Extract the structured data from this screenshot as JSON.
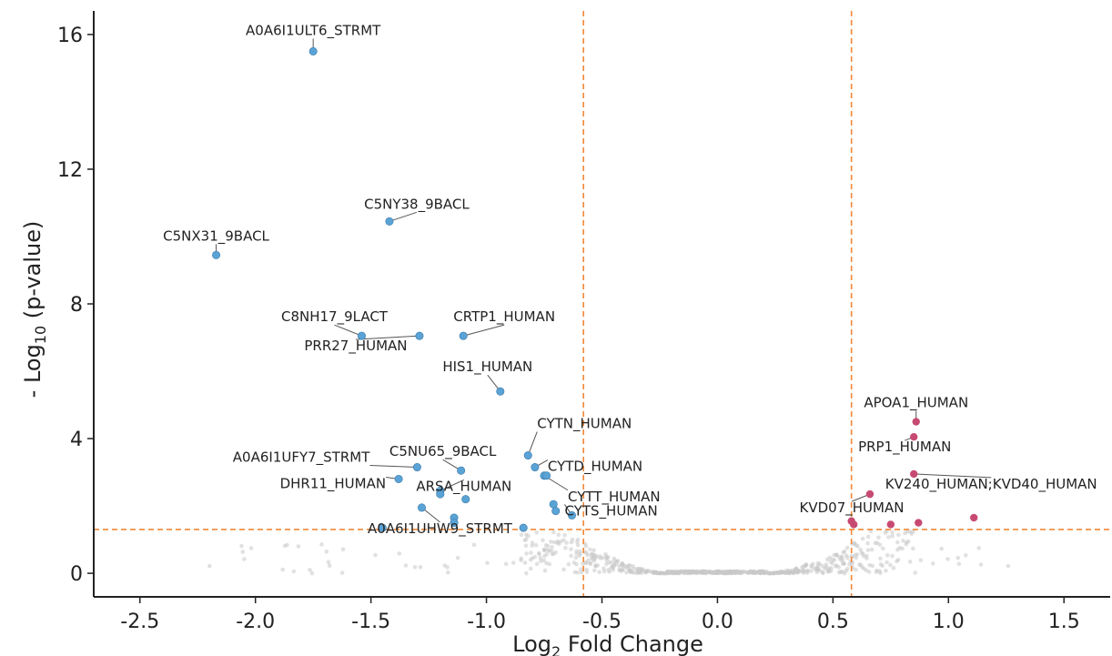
{
  "chart_data": {
    "type": "scatter",
    "title": "",
    "xlabel_main": "Log",
    "xlabel_sub": "2",
    "xlabel_rest": " Fold Change",
    "ylabel_pre": "- Log",
    "ylabel_sub": "10",
    "ylabel_rest": " (p-value)",
    "xlim": [
      -2.7,
      1.7
    ],
    "ylim": [
      -0.7,
      16.7
    ],
    "x_ticks": [
      -2.5,
      -2.0,
      -1.5,
      -1.0,
      -0.5,
      0.0,
      0.5,
      1.0,
      1.5
    ],
    "x_tick_labels": [
      "-2.5",
      "-2.0",
      "-1.5",
      "-1.0",
      "-0.5",
      "0.0",
      "0.5",
      "1.0",
      "1.5"
    ],
    "y_ticks": [
      0,
      4,
      8,
      12,
      16
    ],
    "y_tick_labels": [
      "0",
      "4",
      "8",
      "12",
      "16"
    ],
    "thresholds": {
      "fc_low": -0.58,
      "fc_high": 0.58,
      "p": 1.3
    },
    "colors": {
      "down": "#5aa3d6",
      "up": "#c74a72",
      "ns": "#c8c8c8",
      "threshold": "#f0883a",
      "text": "#222222"
    },
    "grid": false,
    "legend": "none",
    "points_down": [
      {
        "x": -1.75,
        "y": 15.5,
        "label": "A0A6I1ULT6_STRMT"
      },
      {
        "x": -1.42,
        "y": 10.45,
        "label": "C5NY38_9BACL"
      },
      {
        "x": -2.17,
        "y": 9.45,
        "label": "C5NX31_9BACL"
      },
      {
        "x": -1.54,
        "y": 7.05,
        "label": "C8NH17_9LACT"
      },
      {
        "x": -1.29,
        "y": 7.05,
        "label": "PRR27_HUMAN"
      },
      {
        "x": -1.1,
        "y": 7.05,
        "label": "CRTP1_HUMAN"
      },
      {
        "x": -0.94,
        "y": 5.4,
        "label": "HIS1_HUMAN"
      },
      {
        "x": -0.82,
        "y": 3.5,
        "label": "CYTN_HUMAN"
      },
      {
        "x": -0.79,
        "y": 3.15,
        "label": "CYTD_HUMAN"
      },
      {
        "x": -1.3,
        "y": 3.15,
        "label": "A0A6I1UFY7_STRMT"
      },
      {
        "x": -1.11,
        "y": 3.05,
        "label": "C5NU65_9BACL"
      },
      {
        "x": -0.75,
        "y": 2.9,
        "label": "CYTT_HUMAN"
      },
      {
        "x": -1.38,
        "y": 2.8,
        "label": "DHR11_HUMAN"
      },
      {
        "x": -1.2,
        "y": 2.45,
        "label": "ARSA_HUMAN"
      },
      {
        "x": -1.28,
        "y": 1.95,
        "label": "A0A6I1UHW9_STRMT"
      },
      {
        "x": -0.63,
        "y": 1.72,
        "label": "CYTS_HUMAN"
      },
      {
        "x": -0.74,
        "y": 2.9,
        "label": ""
      },
      {
        "x": -1.2,
        "y": 2.35,
        "label": ""
      },
      {
        "x": -1.09,
        "y": 2.2,
        "label": ""
      },
      {
        "x": -0.71,
        "y": 2.05,
        "label": ""
      },
      {
        "x": -0.7,
        "y": 1.85,
        "label": ""
      },
      {
        "x": -1.14,
        "y": 1.65,
        "label": ""
      },
      {
        "x": -1.14,
        "y": 1.5,
        "label": ""
      },
      {
        "x": -1.45,
        "y": 1.35,
        "label": ""
      },
      {
        "x": -0.84,
        "y": 1.35,
        "label": ""
      }
    ],
    "points_up": [
      {
        "x": 0.86,
        "y": 4.5,
        "label": "APOA1_HUMAN"
      },
      {
        "x": 0.85,
        "y": 4.05,
        "label": "PRP1_HUMAN"
      },
      {
        "x": 0.85,
        "y": 2.95,
        "label": "KV240_HUMAN;KVD40_HUMAN"
      },
      {
        "x": 0.66,
        "y": 2.35,
        "label": "KVD07_HUMAN"
      },
      {
        "x": 0.58,
        "y": 1.55,
        "label": ""
      },
      {
        "x": 0.59,
        "y": 1.45,
        "label": ""
      },
      {
        "x": 0.75,
        "y": 1.45,
        "label": ""
      },
      {
        "x": 0.87,
        "y": 1.5,
        "label": ""
      },
      {
        "x": 1.11,
        "y": 1.65,
        "label": ""
      }
    ]
  }
}
